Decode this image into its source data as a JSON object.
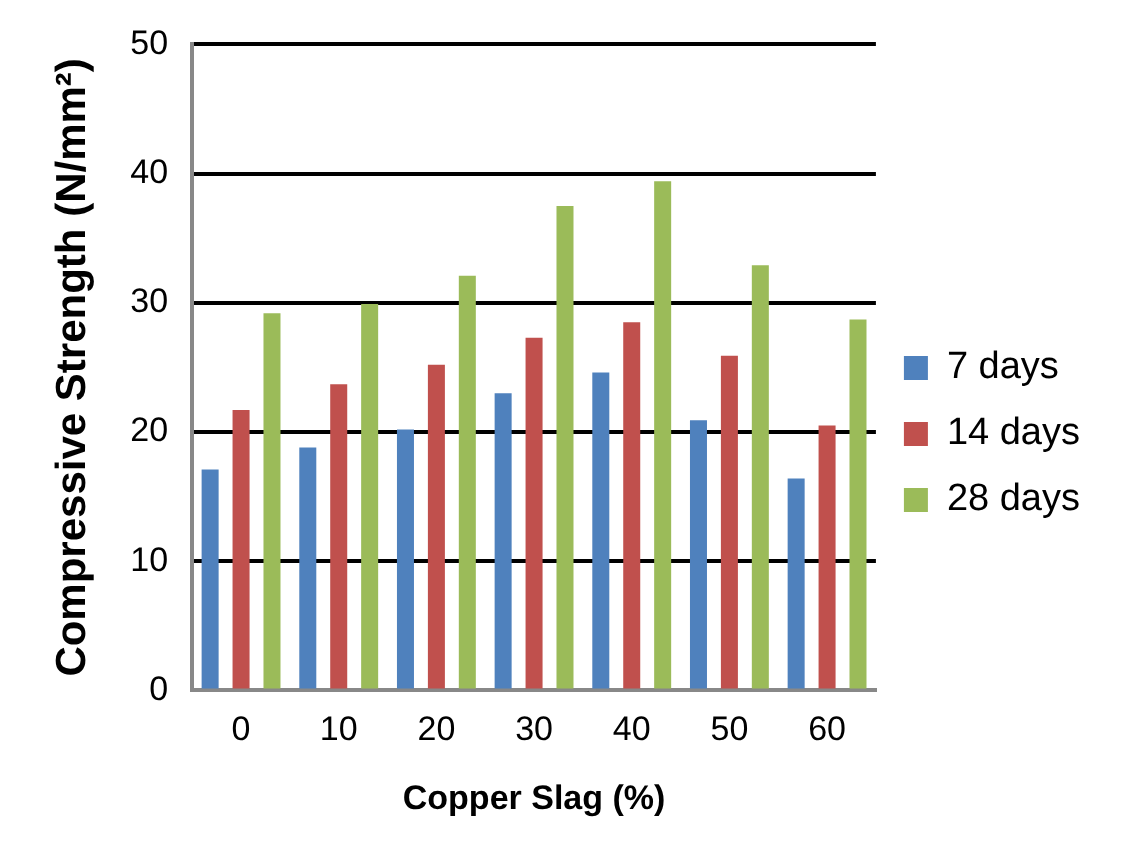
{
  "chart_data": {
    "type": "bar",
    "xlabel": "Copper Slag (%)",
    "ylabel": "Compressive Strength (N/mm²)",
    "categories": [
      "0",
      "10",
      "20",
      "30",
      "40",
      "50",
      "60"
    ],
    "series": [
      {
        "name": "7 days",
        "color": "#4f81bd",
        "values": [
          17.1,
          18.8,
          20.2,
          23.0,
          24.6,
          20.9,
          16.4
        ]
      },
      {
        "name": "14 days",
        "color": "#c0504d",
        "values": [
          21.7,
          23.7,
          25.2,
          27.3,
          28.5,
          25.9,
          20.5
        ]
      },
      {
        "name": "28 days",
        "color": "#9bbb59",
        "values": [
          29.2,
          29.9,
          32.1,
          37.5,
          39.4,
          32.9,
          28.7
        ]
      }
    ],
    "ylim": [
      0,
      50
    ],
    "yticks": [
      0,
      10,
      20,
      30,
      40,
      50
    ],
    "grid": "y",
    "legend": "right"
  }
}
